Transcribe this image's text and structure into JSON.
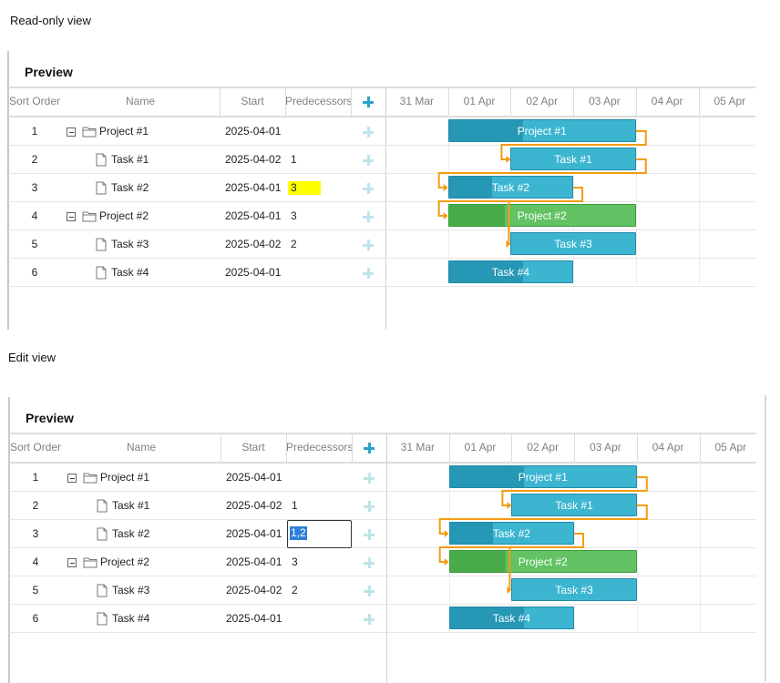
{
  "captions": {
    "readonly": "Read-only view",
    "edit": "Edit view"
  },
  "panel_title": "Preview",
  "columns": {
    "sort_order": "Sort Order",
    "name": "Name",
    "start": "Start",
    "predecessors": "Predecessors"
  },
  "timeline": [
    "31 Mar",
    "01 Apr",
    "02 Apr",
    "03 Apr",
    "04 Apr",
    "05 Apr"
  ],
  "rows": [
    {
      "order": "1",
      "name": "Project #1",
      "type": "project",
      "start": "2025-04-01",
      "pred": ""
    },
    {
      "order": "2",
      "name": "Task #1",
      "type": "task",
      "start": "2025-04-02",
      "pred": "1"
    },
    {
      "order": "3",
      "name": "Task #2",
      "type": "task",
      "start": "2025-04-01",
      "pred": "3"
    },
    {
      "order": "4",
      "name": "Project #2",
      "type": "project",
      "start": "2025-04-01",
      "pred": "3"
    },
    {
      "order": "5",
      "name": "Task #3",
      "type": "task",
      "start": "2025-04-02",
      "pred": "2"
    },
    {
      "order": "6",
      "name": "Task #4",
      "type": "task",
      "start": "2025-04-01",
      "pred": ""
    }
  ],
  "edit_value": "1,2",
  "bars": [
    {
      "label": "Project #1",
      "color": "blue",
      "progress": 0.4
    },
    {
      "label": "Task #1",
      "color": "blue",
      "progress": 0
    },
    {
      "label": "Task #2",
      "color": "blue",
      "progress": 0.35
    },
    {
      "label": "Project #2",
      "color": "green",
      "progress": 0.3
    },
    {
      "label": "Task #3",
      "color": "blue",
      "progress": 0
    },
    {
      "label": "Task #4",
      "color": "blue",
      "progress": 0.6
    }
  ],
  "colors": {
    "link": "#f39c12",
    "highlight": "#ffff00",
    "project_bar": "#48ad49",
    "task_bar": "#3cb5d1"
  }
}
